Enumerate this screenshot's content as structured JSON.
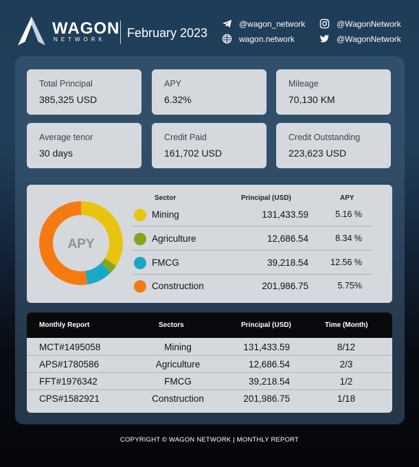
{
  "header": {
    "brand": "WAGON",
    "brand_sub": "NETWORK",
    "period": "February 2023",
    "socials": [
      {
        "icon": "telegram-icon",
        "handle": "@wagon_network"
      },
      {
        "icon": "globe-icon",
        "handle": "wagon.network"
      },
      {
        "icon": "instagram-icon",
        "handle": "@WagonNetwork"
      },
      {
        "icon": "twitter-icon",
        "handle": "@WagonNetwork"
      }
    ]
  },
  "stats": [
    {
      "label": "Total Principal",
      "value": "385,325 USD"
    },
    {
      "label": "APY",
      "value": "6.32%"
    },
    {
      "label": "Mileage",
      "value": "70,130 KM"
    },
    {
      "label": "Average tenor",
      "value": "30 days"
    },
    {
      "label": "Credit Paid",
      "value": "161,702 USD"
    },
    {
      "label": "Credit Outstanding",
      "value": "223,623 USD"
    }
  ],
  "sectors": {
    "donut_label": "APY",
    "headers": {
      "sector": "Sector",
      "principal": "Principal (USD)",
      "apy": "APY"
    },
    "rows": [
      {
        "name": "Mining",
        "principal": "131,433.59",
        "apy": "5.16 %",
        "color": "#e8c410",
        "share": 131433.59
      },
      {
        "name": "Agriculture",
        "principal": "12,686.54",
        "apy": "8.34 %",
        "color": "#84a61c",
        "share": 12686.54
      },
      {
        "name": "FMCG",
        "principal": "39,218.54",
        "apy": "12.56 %",
        "color": "#1ba8c8",
        "share": 39218.54
      },
      {
        "name": "Construction",
        "principal": "201,986.75",
        "apy": "5.75%",
        "color": "#f57a12",
        "share": 201986.75
      }
    ]
  },
  "report": {
    "headers": {
      "report": "Monthly Report",
      "sectors": "Sectors",
      "principal": "Principal (USD)",
      "time": "Time (Month)"
    },
    "rows": [
      {
        "id": "MCT#1495058",
        "sector": "Mining",
        "principal": "131,433.59",
        "time": "8/12"
      },
      {
        "id": "APS#1780586",
        "sector": "Agriculture",
        "principal": "12,686.54",
        "time": "2/3"
      },
      {
        "id": "FFT#1976342",
        "sector": "FMCG",
        "principal": "39,218.54",
        "time": "1/2"
      },
      {
        "id": "CPS#1582921",
        "sector": "Construction",
        "principal": "201,986.75",
        "time": "1/18"
      }
    ]
  },
  "footer": "COPYRIGHT © WAGON NETWORK | MONTHLY REPORT"
}
